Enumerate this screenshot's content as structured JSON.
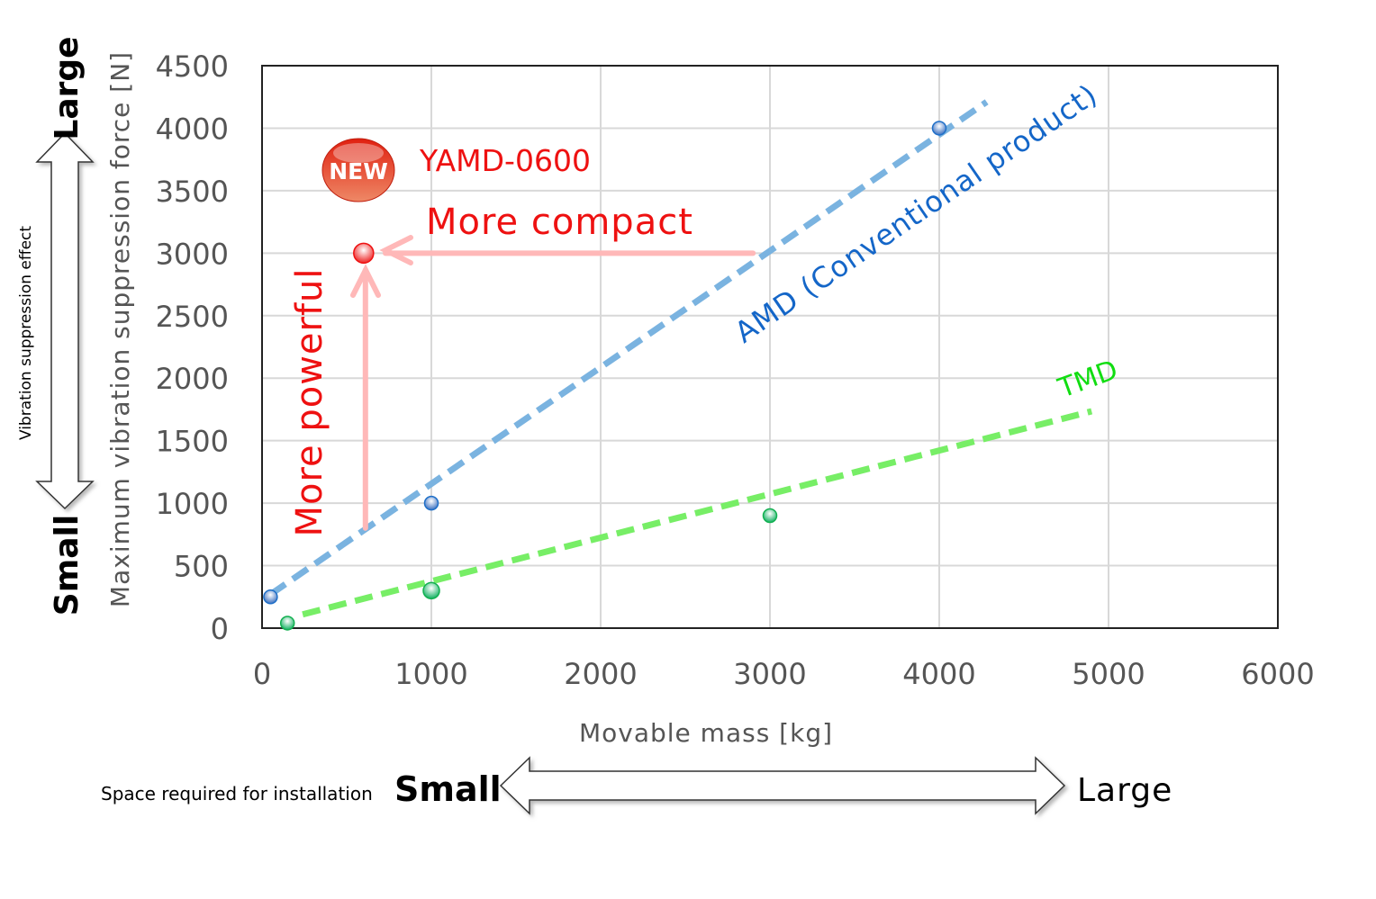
{
  "chart_data": {
    "type": "scatter",
    "xlabel": "Movable mass [kg]",
    "ylabel": "Maximum vibration suppression force [N]",
    "xlim": [
      0,
      6000
    ],
    "ylim": [
      0,
      4500
    ],
    "x_ticks": [
      0,
      1000,
      2000,
      3000,
      4000,
      5000,
      6000
    ],
    "y_ticks": [
      0,
      500,
      1000,
      1500,
      2000,
      2500,
      3000,
      3500,
      4000,
      4500
    ],
    "grid": true,
    "series": [
      {
        "name": "AMD (Conventional product)",
        "color": "#1e6fc8",
        "points": [
          [
            50,
            250
          ],
          [
            1000,
            1000
          ],
          [
            4000,
            4000
          ]
        ],
        "trendline": {
          "color": "#7ab3e0",
          "from": [
            50,
            270
          ],
          "to": [
            4280,
            4210
          ]
        }
      },
      {
        "name": "TMD",
        "color": "#12b050",
        "points": [
          [
            150,
            40
          ],
          [
            1000,
            300
          ],
          [
            3000,
            900
          ]
        ],
        "trendline": {
          "color": "#77ee66",
          "from": [
            240,
            110
          ],
          "to": [
            4900,
            1735
          ]
        }
      },
      {
        "name": "YAMD-0600",
        "color": "#ee1111",
        "points": [
          [
            600,
            3000
          ]
        ]
      }
    ],
    "annotations": {
      "amd_label": "AMD (Conventional product)",
      "tmd_label": "TMD",
      "new_badge": "NEW",
      "product_label": "YAMD-0600",
      "compact_label": "More compact",
      "powerful_label": "More powerful",
      "compact_arrow_from_x": 2900,
      "powerful_arrow_from_y": 800
    },
    "left_scale": {
      "title": "Vibration suppression effect",
      "top": "Large",
      "bottom": "Small"
    },
    "bottom_scale": {
      "title": "Space required for installation",
      "left": "Small",
      "right": "Large"
    }
  }
}
